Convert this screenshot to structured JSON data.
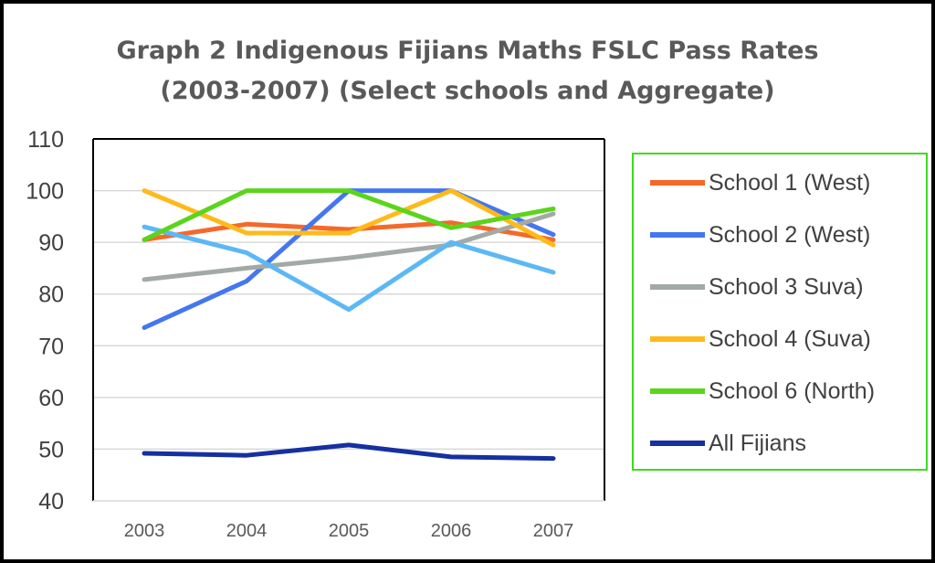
{
  "chart_data": {
    "type": "line",
    "title_lines": [
      "Graph 2   Indigenous Fijians Maths FSLC Pass Rates",
      "(2003-2007)  (Select schools and Aggregate)"
    ],
    "categories": [
      "2003",
      "2004",
      "2005",
      "2006",
      "2007"
    ],
    "yticks": [
      "40",
      "50",
      "60",
      "70",
      "80",
      "90",
      "100",
      "110"
    ],
    "ylim": [
      40,
      110
    ],
    "grid": true,
    "legend_position": "right",
    "series": [
      {
        "name": "School 1 (West)",
        "color": "#f4692a",
        "values": [
          90.5,
          93.5,
          92.5,
          93.8,
          90.5
        ],
        "in_legend": true
      },
      {
        "name": "School 2 (West)",
        "color": "#4477ee",
        "values": [
          73.5,
          82.5,
          100,
          100,
          91.5
        ],
        "in_legend": true
      },
      {
        "name": "School 3 Suva)",
        "color": "#a3aaa6",
        "values": [
          82.8,
          85,
          87,
          89.5,
          95.5
        ],
        "in_legend": true
      },
      {
        "name": "School 4 (Suva)",
        "color": "#ffba1a",
        "values": [
          100,
          91.8,
          91.8,
          100,
          89.5
        ],
        "in_legend": true
      },
      {
        "name": "",
        "color": "#5cb8f4",
        "values": [
          93,
          88,
          77,
          90,
          84.2
        ],
        "in_legend": false
      },
      {
        "name": "School 6 (North)",
        "color": "#5bd41c",
        "values": [
          90.5,
          100,
          100,
          92.8,
          96.5
        ],
        "in_legend": true
      },
      {
        "name": "All Fijians",
        "color": "#1530a0",
        "values": [
          49.2,
          48.8,
          50.8,
          48.5,
          48.2
        ],
        "in_legend": true
      }
    ]
  }
}
